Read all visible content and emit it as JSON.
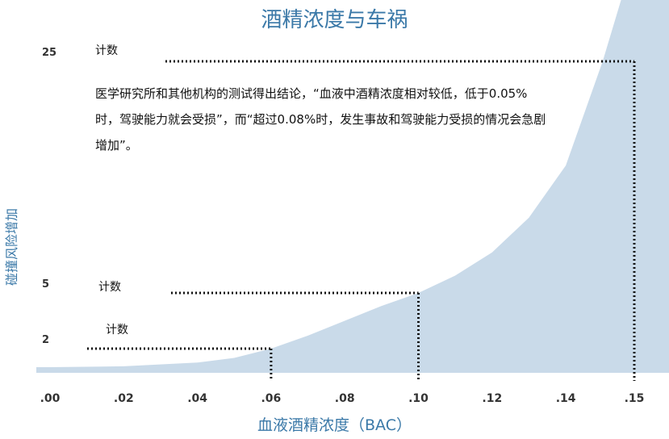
{
  "chart_data": {
    "type": "area",
    "title": "酒精浓度与车祸",
    "xlabel": "血液酒精浓度（BAC）",
    "ylabel": "碰撞风险增加",
    "x_ticks": [
      ".00",
      ".02",
      ".04",
      ".06",
      ".08",
      ".10",
      ".12",
      ".14",
      ".15"
    ],
    "y_ticks": [
      "2",
      "5",
      "25"
    ],
    "series": [
      {
        "x": [
          0.0,
          0.02,
          0.04,
          0.05,
          0.06,
          0.07,
          0.08,
          0.09,
          0.1,
          0.11,
          0.12,
          0.13,
          0.14,
          0.15,
          0.155
        ],
        "y": [
          1.0,
          1.05,
          1.25,
          1.5,
          2.0,
          2.7,
          3.5,
          4.3,
          5.0,
          6.5,
          8.5,
          11.5,
          16.0,
          25.0,
          32.0
        ]
      }
    ],
    "annotations": [
      {
        "label": "计数",
        "x": 0.06,
        "y": 2
      },
      {
        "label": "计数",
        "x": 0.1,
        "y": 5
      },
      {
        "label": "计数",
        "x": 0.15,
        "y": 25
      }
    ],
    "note": "医学研究所和其他机构的测试得出结论，“血液中酒精浓度相对较低，低于0.05%时，驾驶能力就会受损”，而“超过0.08%时，发生事故和驾驶能力受损的情况会急剧增加”。",
    "colors": {
      "area": "#c9dae9",
      "title": "#3b79a8",
      "dots": "#111111"
    }
  }
}
